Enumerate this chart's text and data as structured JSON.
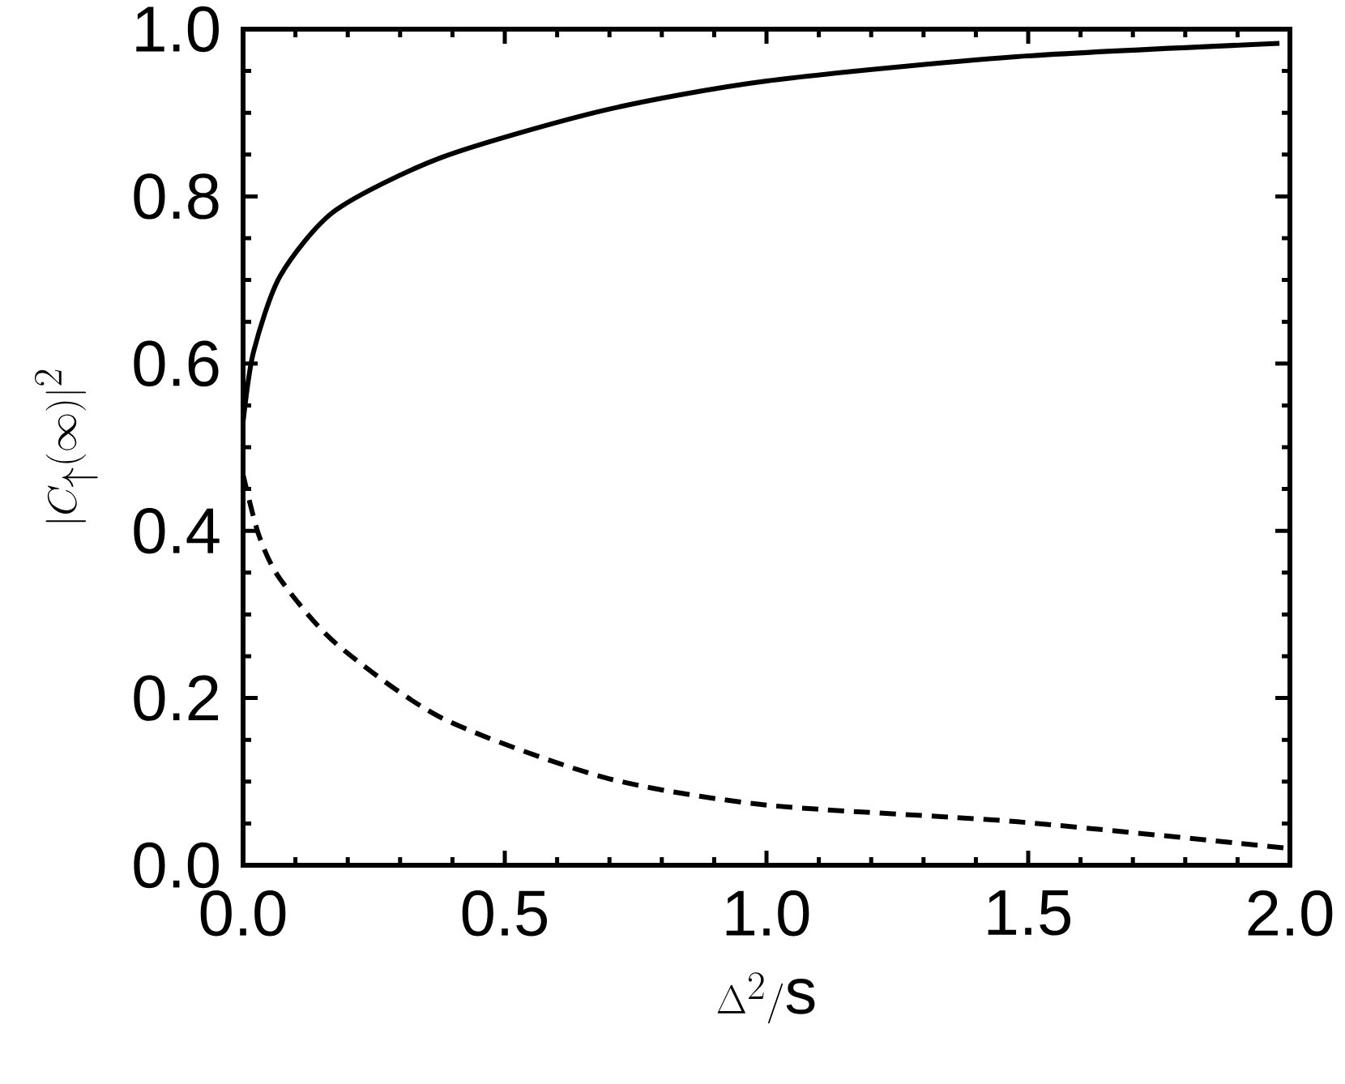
{
  "chart_data": {
    "type": "line",
    "xlabel": "\\Delta^2/\\mathrm{s}",
    "ylabel": "|C_\\uparrow(\\infty)|^2",
    "xlim": [
      0,
      2
    ],
    "ylim": [
      0,
      1
    ],
    "xticks": [
      {
        "value": 0,
        "label": "0.0"
      },
      0.5,
      {
        "value": 1,
        "label": "1.0"
      },
      1.5,
      {
        "value": 2,
        "label": "2.0"
      }
    ],
    "yticks": [
      {
        "value": 0,
        "label": "0.0"
      },
      0.2,
      0.4,
      0.6,
      0.8,
      {
        "value": 1,
        "label": "1.0"
      }
    ],
    "series": [
      {
        "color": "#000000",
        "line_style": "solid",
        "x": [
          0,
          0.02,
          0.071,
          0.176,
          0.381,
          0.69,
          1.0,
          1.477,
          1.98
        ],
        "values": [
          0.53,
          0.614,
          0.705,
          0.783,
          0.847,
          0.903,
          0.938,
          0.967,
          0.983
        ]
      },
      {
        "color": "#000000",
        "line_style": "dashed",
        "x": [
          0,
          0.03,
          0.07,
          0.176,
          0.38,
          0.69,
          1.0,
          1.48,
          2.0
        ],
        "values": [
          0.467,
          0.395,
          0.343,
          0.266,
          0.176,
          0.105,
          0.072,
          0.052,
          0.02
        ]
      }
    ]
  }
}
